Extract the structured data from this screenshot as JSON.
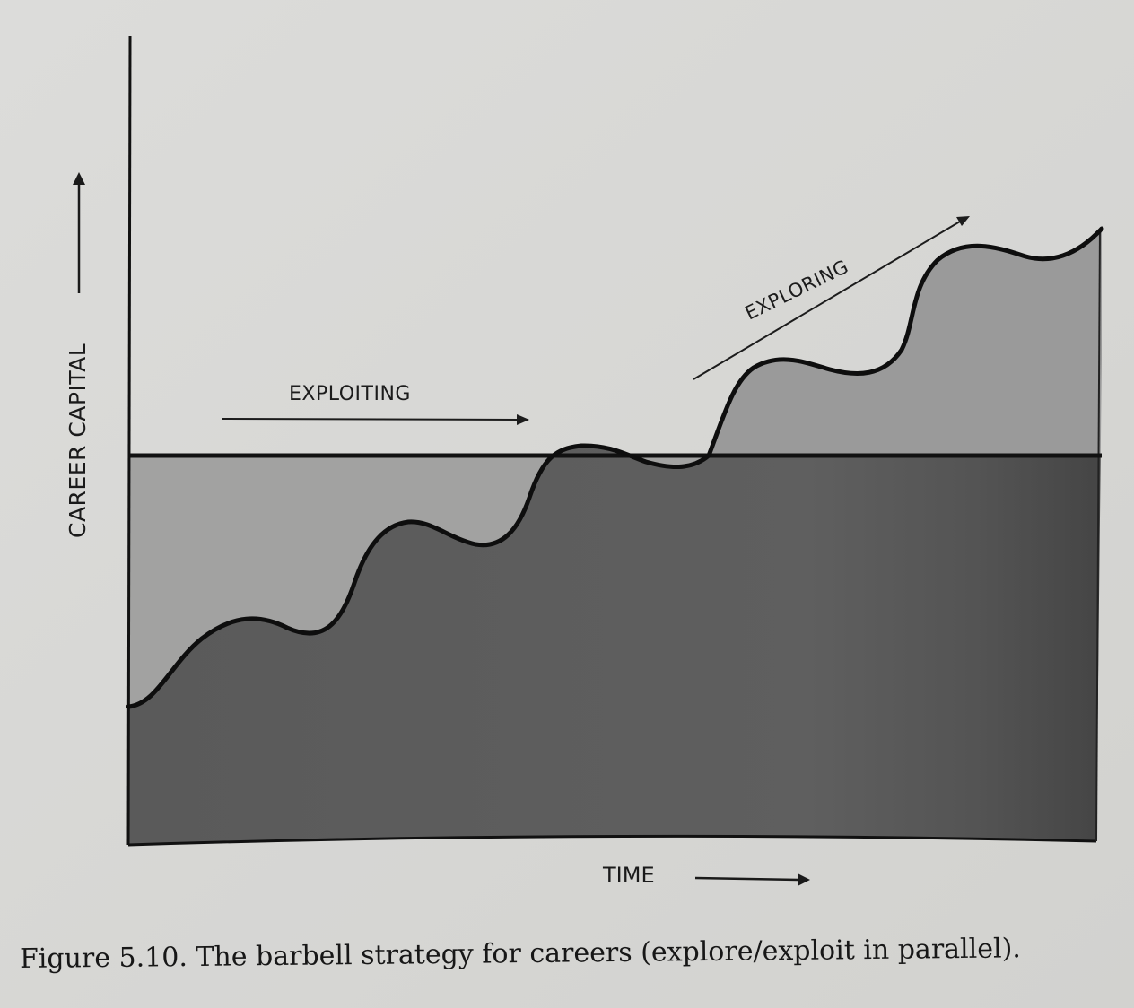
{
  "diagram": {
    "y_axis_label": "CAREER CAPITAL",
    "x_axis_label": "TIME",
    "exploiting_label": "EXPLOITING",
    "exploring_label": "EXPLORING"
  },
  "caption": "Figure 5.10. The barbell strategy for careers (explore/exploit in parallel).",
  "colors": {
    "paper": "#d8d8d6",
    "top_band": "#9d9d9d",
    "lower_region": "#5e5e5e",
    "lower_region_right": "#4a4a4a",
    "line": "#111111"
  }
}
